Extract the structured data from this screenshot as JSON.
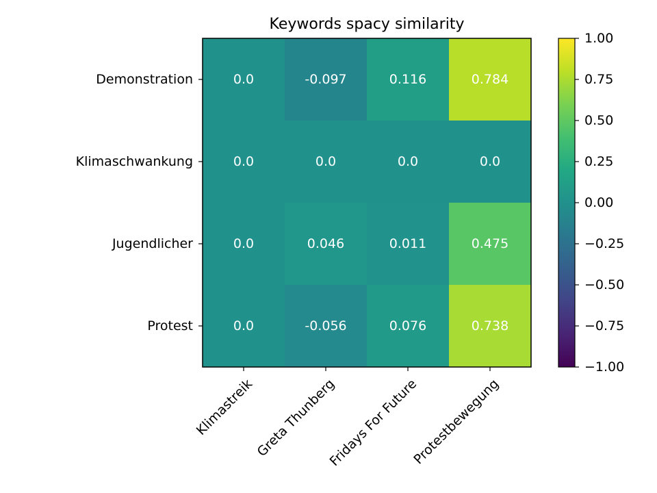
{
  "chart_data": {
    "type": "heatmap",
    "title": "Keywords spacy similarity",
    "x_categories": [
      "Klimastreik",
      "Greta Thunberg",
      "Fridays For Future",
      "Protestbewegung"
    ],
    "y_categories": [
      "Demonstration",
      "Klimaschwankung",
      "Jugendlicher",
      "Protest"
    ],
    "values": [
      [
        0.0,
        -0.097,
        0.116,
        0.784
      ],
      [
        0.0,
        0.0,
        0.0,
        0.0
      ],
      [
        0.0,
        0.046,
        0.011,
        0.475
      ],
      [
        0.0,
        -0.056,
        0.076,
        0.738
      ]
    ],
    "cell_labels": [
      [
        "0.0",
        "-0.097",
        "0.116",
        "0.784"
      ],
      [
        "0.0",
        "0.0",
        "0.0",
        "0.0"
      ],
      [
        "0.0",
        "0.046",
        "0.011",
        "0.475"
      ],
      [
        "0.0",
        "-0.056",
        "0.076",
        "0.738"
      ]
    ],
    "colormap": "viridis",
    "vmin": -1.0,
    "vmax": 1.0,
    "colorbar_ticks": [
      1.0,
      0.75,
      0.5,
      0.25,
      0.0,
      -0.25,
      -0.5,
      -0.75,
      -1.0
    ],
    "colorbar_tick_labels": [
      "1.00",
      "0.75",
      "0.50",
      "0.25",
      "0.00",
      "−0.25",
      "−0.50",
      "−0.75",
      "−1.00"
    ],
    "cell_text_color": "#ffffff"
  }
}
